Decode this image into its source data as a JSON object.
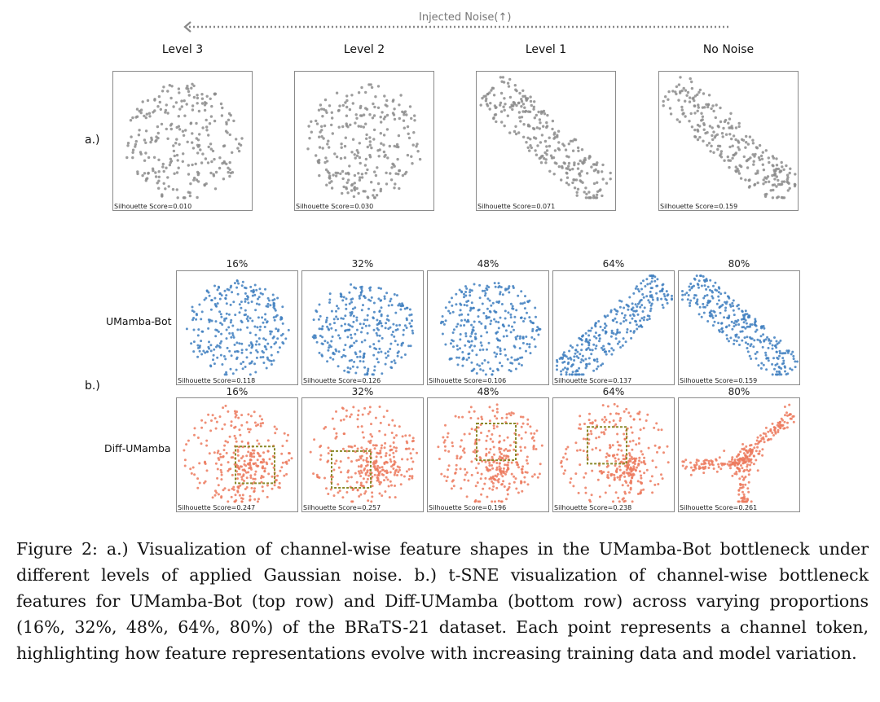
{
  "header": {
    "noise_label": "Injected Noise(↑)"
  },
  "part_a": {
    "row_label": "a.)",
    "panels": [
      {
        "title": "Level 3",
        "score": "Silhouette Score=0.010",
        "shape": "blob",
        "seed": 11
      },
      {
        "title": "Level 2",
        "score": "Silhouette Score=0.030",
        "shape": "blob",
        "seed": 23
      },
      {
        "title": "Level 1",
        "score": "Silhouette Score=0.071",
        "shape": "diag",
        "seed": 37
      },
      {
        "title": "No Noise",
        "score": "Silhouette Score=0.159",
        "shape": "diag",
        "seed": 41
      }
    ],
    "color": "#8c8c8c"
  },
  "part_b": {
    "row_label": "b.)",
    "rows": [
      {
        "model": "UMamba-Bot",
        "color": "#3f7fbf",
        "panels": [
          {
            "title": "16%",
            "score": "Silhouette Score=0.118",
            "shape": "blob",
            "seed": 5
          },
          {
            "title": "32%",
            "score": "Silhouette Score=0.126",
            "shape": "blob",
            "seed": 9
          },
          {
            "title": "48%",
            "score": "Silhouette Score=0.106",
            "shape": "blob",
            "seed": 13
          },
          {
            "title": "64%",
            "score": "Silhouette Score=0.137",
            "shape": "anti",
            "seed": 17
          },
          {
            "title": "80%",
            "score": "Silhouette Score=0.159",
            "shape": "diag",
            "seed": 21
          }
        ]
      },
      {
        "model": "Diff-UMamba",
        "color": "#ec7a5e",
        "panels": [
          {
            "title": "16%",
            "score": "Silhouette Score=0.247",
            "shape": "clustered",
            "seed": 31,
            "box": true
          },
          {
            "title": "32%",
            "score": "Silhouette Score=0.257",
            "shape": "clustered",
            "seed": 33,
            "box": true
          },
          {
            "title": "48%",
            "score": "Silhouette Score=0.196",
            "shape": "clustered",
            "seed": 35,
            "box": true
          },
          {
            "title": "64%",
            "score": "Silhouette Score=0.238",
            "shape": "clustered",
            "seed": 39,
            "box": true
          },
          {
            "title": "80%",
            "score": "Silhouette Score=0.261",
            "shape": "branches",
            "seed": 43,
            "box": false
          }
        ]
      }
    ]
  },
  "caption": "Figure 2: a.) Visualization of channel-wise feature shapes in the UMamba-Bot bottleneck under different levels of applied Gaussian noise. b.) t-SNE visualization of channel-wise bottleneck features for UMamba-Bot (top row) and Diff-UMamba (bottom row) across varying proportions (16%, 32%, 48%, 64%, 80%) of the BRaTS-21 dataset. Each point represents a channel token, highlighting how feature representations evolve with increasing training data and model variation."
}
